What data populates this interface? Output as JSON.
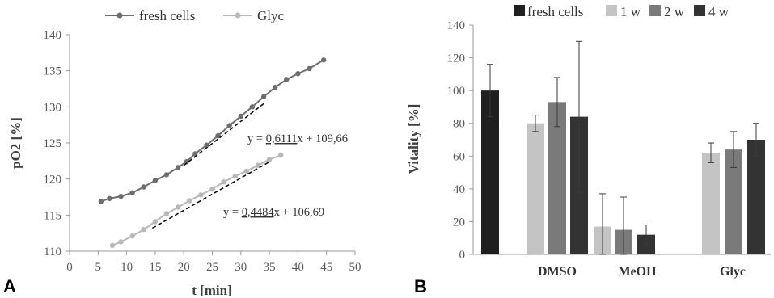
{
  "panels": {
    "a_label": "A",
    "b_label": "B"
  },
  "colors": {
    "fresh_a": "#6e6e6e",
    "glyc_a": "#b8b8b8",
    "fresh_b": "#1f1f1f",
    "w1": "#c4c4c4",
    "w2": "#7a7a7a",
    "w4": "#333333",
    "trend": "#111111",
    "axis": "#9a9a9a"
  },
  "chart_data": [
    {
      "panel": "A",
      "type": "line",
      "xlabel": "t [min]",
      "ylabel": "pO2 [%]",
      "xlim": [
        0,
        50
      ],
      "ylim": [
        110,
        140
      ],
      "xticks": [
        0,
        5,
        10,
        15,
        20,
        25,
        30,
        35,
        40,
        45,
        50
      ],
      "yticks": [
        110,
        115,
        120,
        125,
        130,
        135,
        140
      ],
      "grid": false,
      "legend": "top-center",
      "series": [
        {
          "name": "fresh cells",
          "x": [
            5.5,
            7,
            9,
            11,
            13,
            15,
            17,
            19,
            20.5,
            22,
            24,
            26,
            28,
            30,
            32,
            34,
            36,
            38,
            40,
            42,
            44.5
          ],
          "y": [
            116.9,
            117.3,
            117.6,
            118.1,
            118.9,
            119.8,
            120.6,
            121.6,
            122.4,
            123.5,
            124.7,
            126.0,
            127.4,
            128.7,
            130.0,
            131.4,
            132.7,
            133.8,
            134.6,
            135.3,
            136.5
          ]
        },
        {
          "name": "Glyc",
          "x": [
            7.5,
            9,
            11,
            13,
            15,
            17,
            19,
            21,
            23,
            25,
            27,
            29,
            31,
            33,
            35,
            37
          ],
          "y": [
            110.8,
            111.3,
            112.1,
            113.0,
            114.1,
            115.2,
            116.1,
            117.0,
            117.8,
            118.6,
            119.6,
            120.4,
            121.1,
            121.9,
            122.7,
            123.3
          ]
        }
      ],
      "trendlines": [
        {
          "series": "fresh cells",
          "slope": 0.6111,
          "intercept": 109.66,
          "x_range": [
            20,
            34
          ]
        },
        {
          "series": "Glyc",
          "slope": 0.4484,
          "intercept": 106.69,
          "x_range": [
            14.5,
            35
          ]
        }
      ],
      "annotations": [
        {
          "prefix": "y = ",
          "underlined": "0,6111",
          "suffix": "x + 109,66"
        },
        {
          "prefix": "y = ",
          "underlined": "0,4484",
          "suffix": "x + 106,69"
        }
      ]
    },
    {
      "panel": "B",
      "type": "bar",
      "ylabel": "Vitality [%]",
      "ylim": [
        0,
        140
      ],
      "yticks": [
        0,
        20,
        40,
        60,
        80,
        100,
        120,
        140
      ],
      "grid": false,
      "legend": "top",
      "groups": [
        "",
        "DMSO",
        "MeOH",
        "Glyc"
      ],
      "series": [
        {
          "name": "fresh cells",
          "values": [
            100,
            null,
            null,
            null
          ],
          "errors": [
            16,
            null,
            null,
            null
          ]
        },
        {
          "name": "1 w",
          "values": [
            null,
            80,
            17,
            62
          ],
          "errors": [
            null,
            5,
            20,
            6
          ]
        },
        {
          "name": "2 w",
          "values": [
            null,
            93,
            15,
            64
          ],
          "errors": [
            null,
            15,
            20,
            11
          ]
        },
        {
          "name": "4 w",
          "values": [
            null,
            84,
            12,
            70
          ],
          "errors": [
            null,
            46,
            6,
            10
          ]
        }
      ]
    }
  ]
}
